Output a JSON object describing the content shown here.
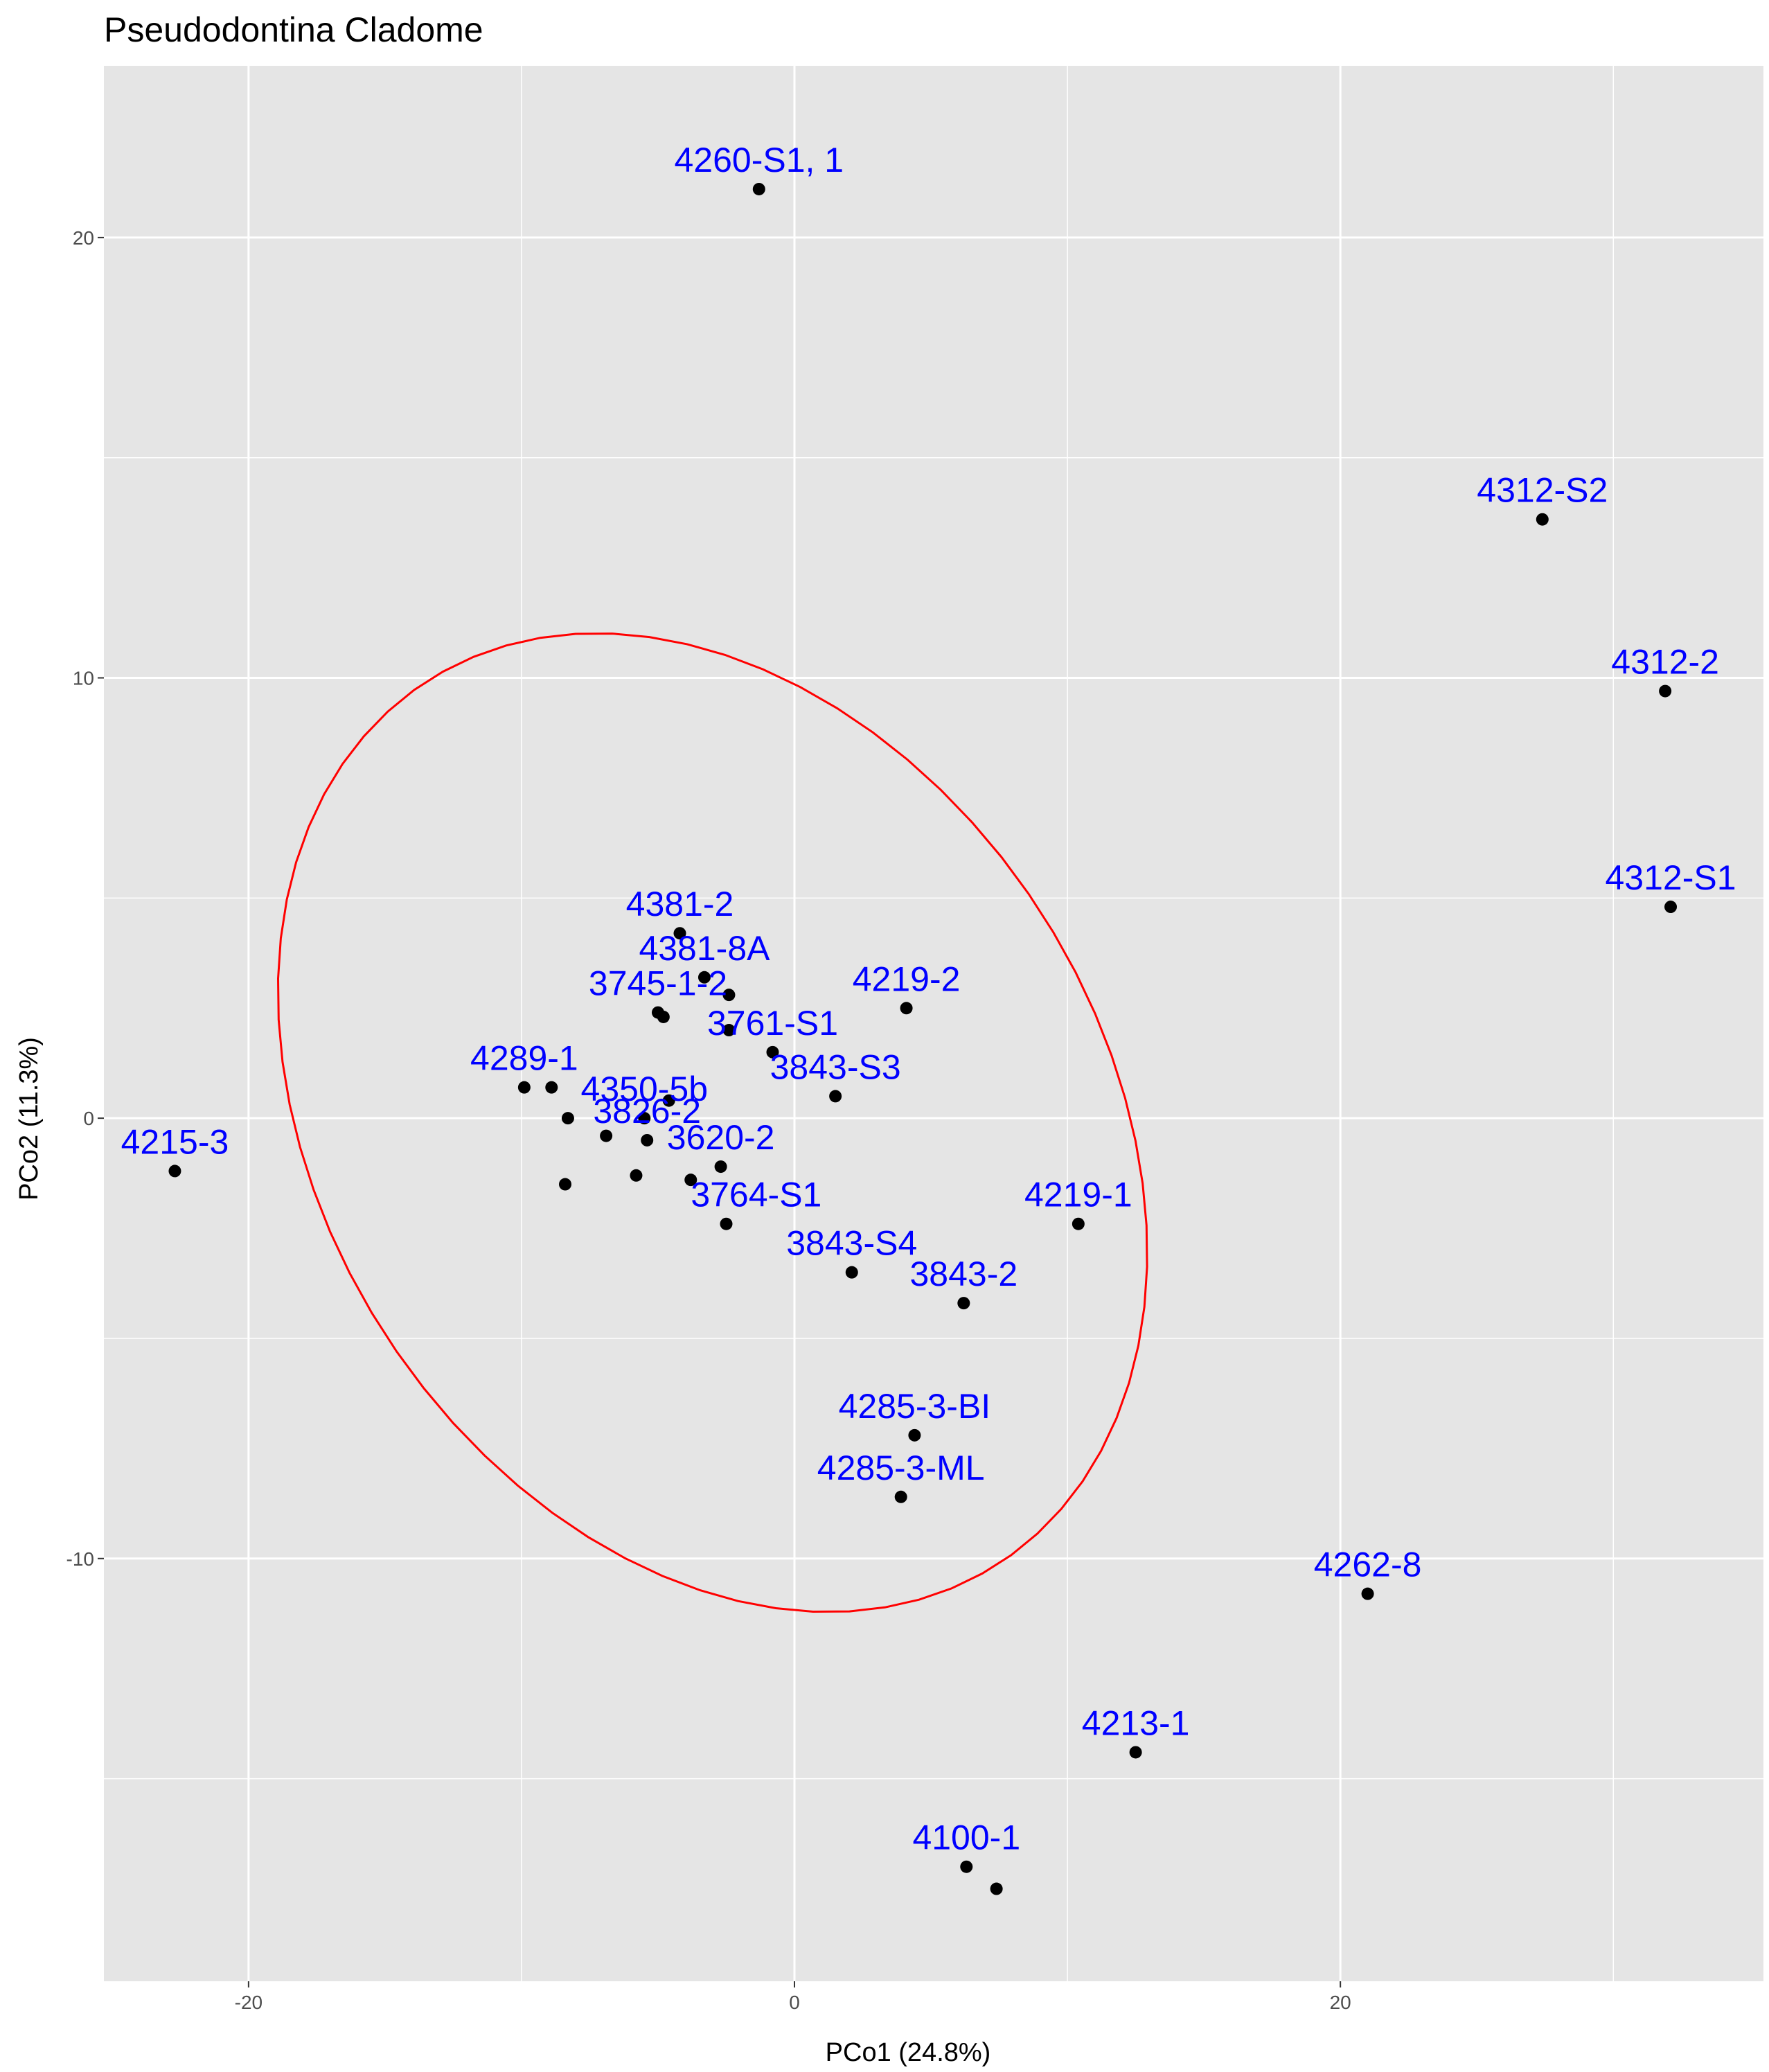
{
  "chart_data": {
    "type": "scatter",
    "title": "Pseudodontina Cladome",
    "xlabel": "PCo1 (24.8%)",
    "ylabel": "PCo2 (11.3%)",
    "xlim": [
      -25.3,
      35.5
    ],
    "ylim": [
      -19.6,
      23.9
    ],
    "x_ticks": [
      -20,
      0,
      20
    ],
    "x_tick_labels": [
      "-20",
      "0",
      "20"
    ],
    "y_ticks": [
      -10,
      0,
      10,
      20
    ],
    "y_tick_labels": [
      "-10",
      "0",
      "10",
      "20"
    ],
    "grid": true,
    "background_color": "#e5e5e5",
    "label_color": "#0000ff",
    "point_color": "#000000",
    "ellipse_color": "#ff0000",
    "ellipse": {
      "cx": -3.0,
      "cy": -0.1,
      "rx": 16.4,
      "ry": 10.4,
      "angle_deg": -18
    },
    "points": [
      {
        "x": -1.3,
        "y": 21.1
      },
      {
        "x": 27.4,
        "y": 13.6
      },
      {
        "x": 31.9,
        "y": 9.7
      },
      {
        "x": 32.1,
        "y": 4.8
      },
      {
        "x": -4.2,
        "y": 4.2
      },
      {
        "x": -3.3,
        "y": 3.2
      },
      {
        "x": -2.4,
        "y": 2.8
      },
      {
        "x": 4.1,
        "y": 2.5
      },
      {
        "x": -5.0,
        "y": 2.4
      },
      {
        "x": -4.8,
        "y": 2.3
      },
      {
        "x": -2.4,
        "y": 2.0
      },
      {
        "x": -0.8,
        "y": 1.5
      },
      {
        "x": -9.9,
        "y": 0.7
      },
      {
        "x": -8.9,
        "y": 0.7
      },
      {
        "x": -4.6,
        "y": 0.4
      },
      {
        "x": 1.5,
        "y": 0.5
      },
      {
        "x": -8.3,
        "y": 0.0
      },
      {
        "x": -5.5,
        "y": 0.0
      },
      {
        "x": -6.9,
        "y": -0.4
      },
      {
        "x": -5.4,
        "y": -0.5
      },
      {
        "x": -22.7,
        "y": -1.2
      },
      {
        "x": -2.7,
        "y": -1.1
      },
      {
        "x": -5.8,
        "y": -1.3
      },
      {
        "x": -3.8,
        "y": -1.4
      },
      {
        "x": -8.4,
        "y": -1.5
      },
      {
        "x": -2.5,
        "y": -2.4
      },
      {
        "x": 10.4,
        "y": -2.4
      },
      {
        "x": 2.1,
        "y": -3.5
      },
      {
        "x": 6.2,
        "y": -4.2
      },
      {
        "x": 4.4,
        "y": -7.2
      },
      {
        "x": 3.9,
        "y": -8.6
      },
      {
        "x": 21.0,
        "y": -10.8
      },
      {
        "x": 12.5,
        "y": -14.4
      },
      {
        "x": 6.3,
        "y": -17.0
      },
      {
        "x": 7.4,
        "y": -17.5
      }
    ],
    "labels": [
      {
        "text": "4260-S1, 1",
        "x": -1.3,
        "y": 21.1
      },
      {
        "text": "4312-S2",
        "x": 27.4,
        "y": 13.6
      },
      {
        "text": "4312-2",
        "x": 31.9,
        "y": 9.7
      },
      {
        "text": "4312-S1",
        "x": 32.1,
        "y": 4.8
      },
      {
        "text": "4381-2",
        "x": -4.2,
        "y": 4.2
      },
      {
        "text": "4381-8A",
        "x": -3.3,
        "y": 3.2
      },
      {
        "text": "4219-2",
        "x": 4.1,
        "y": 2.5
      },
      {
        "text": "3745-1-2",
        "x": -5.0,
        "y": 2.4
      },
      {
        "text": "3761-S1",
        "x": -0.8,
        "y": 1.5
      },
      {
        "text": "4289-1",
        "x": -9.9,
        "y": 0.7
      },
      {
        "text": "4350-5b",
        "x": -5.5,
        "y": 0.0
      },
      {
        "text": "3843-S3",
        "x": 1.5,
        "y": 0.5
      },
      {
        "text": "3826-2",
        "x": -5.4,
        "y": -0.5
      },
      {
        "text": "4215-3",
        "x": -22.7,
        "y": -1.2
      },
      {
        "text": "3620-2",
        "x": -2.7,
        "y": -1.1
      },
      {
        "text": "3764-S1",
        "x": -1.4,
        "y": -2.4
      },
      {
        "text": "4219-1",
        "x": 10.4,
        "y": -2.4
      },
      {
        "text": "3843-S4",
        "x": 2.1,
        "y": -3.5
      },
      {
        "text": "3843-2",
        "x": 6.2,
        "y": -4.2
      },
      {
        "text": "4285-3-BI",
        "x": 4.4,
        "y": -7.2
      },
      {
        "text": "4285-3-ML",
        "x": 3.9,
        "y": -8.6
      },
      {
        "text": "4262-8",
        "x": 21.0,
        "y": -10.8
      },
      {
        "text": "4213-1",
        "x": 12.5,
        "y": -14.4
      },
      {
        "text": "4100-1",
        "x": 6.3,
        "y": -17.0
      }
    ]
  }
}
